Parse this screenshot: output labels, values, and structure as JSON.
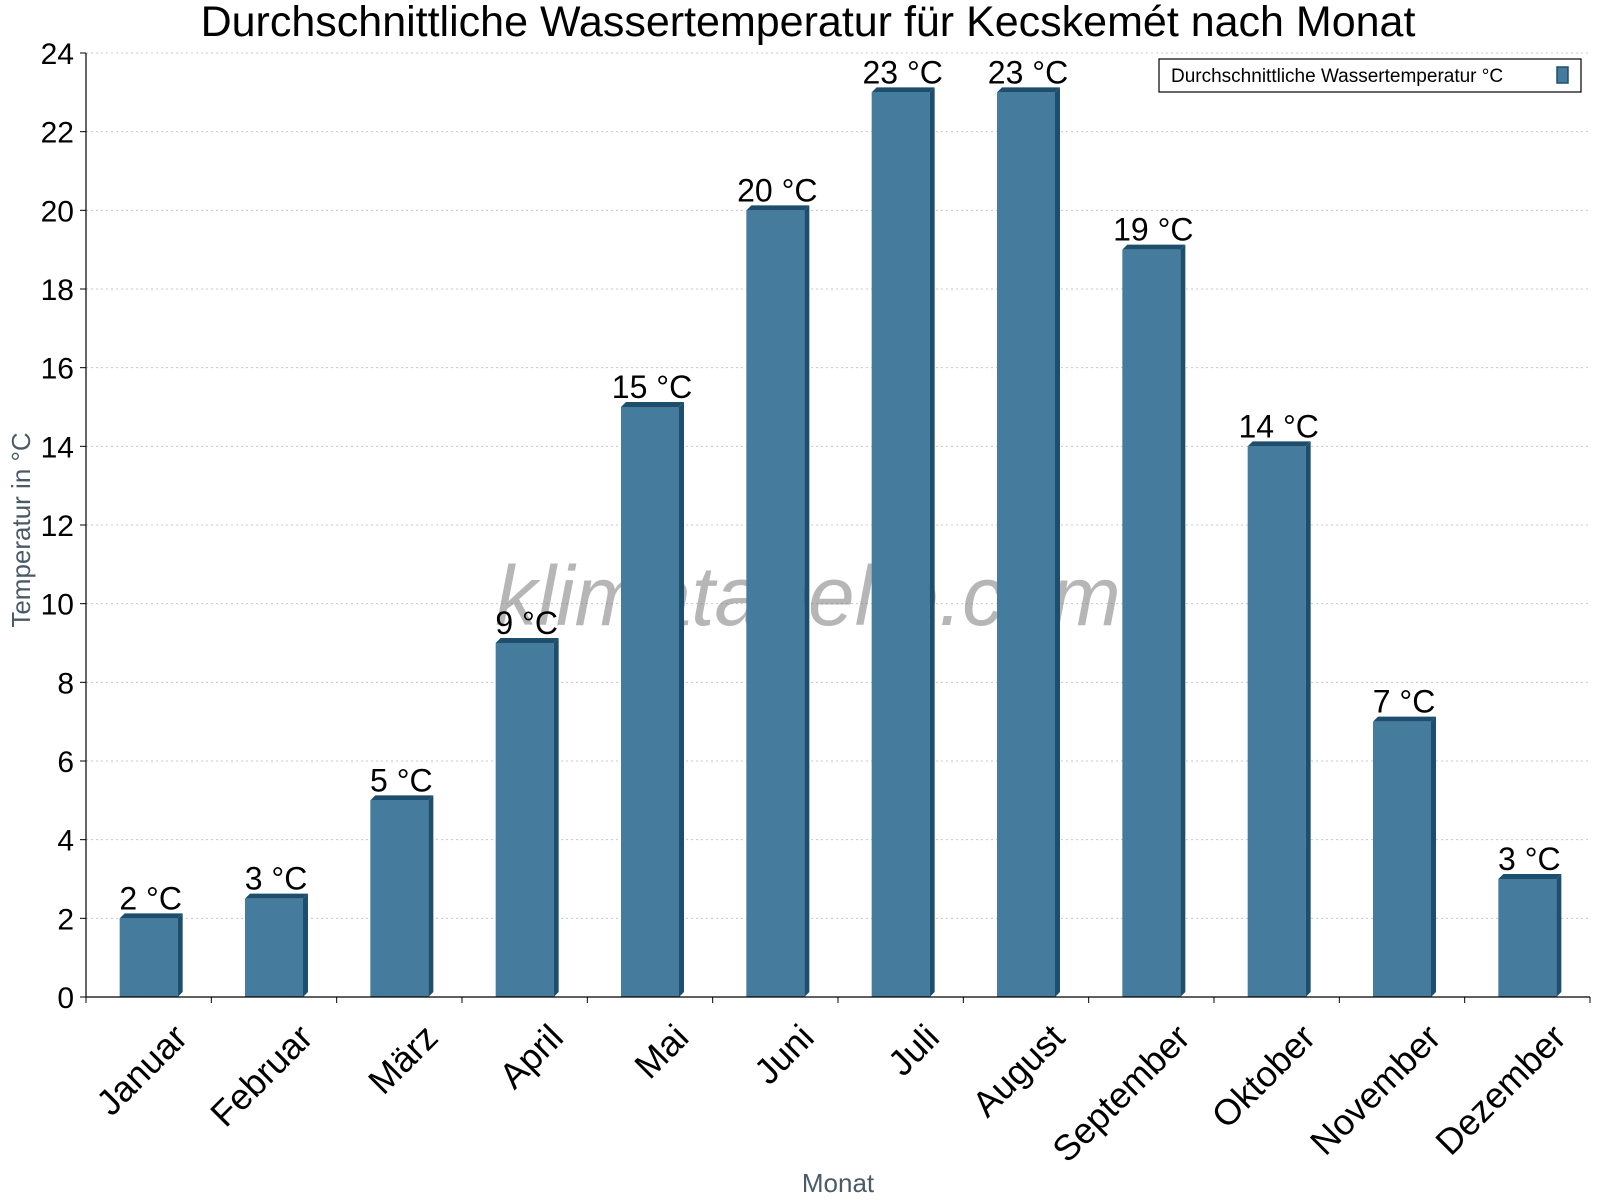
{
  "chart_data": {
    "type": "bar",
    "title": "Durchschnittliche Wassertemperatur für Kecskemét nach Monat",
    "xlabel": "Monat",
    "ylabel": "Temperatur in °C",
    "categories": [
      "Januar",
      "Februar",
      "März",
      "April",
      "Mai",
      "Juni",
      "Juli",
      "August",
      "September",
      "Oktober",
      "November",
      "Dezember"
    ],
    "series": [
      {
        "name": "Durchschnittliche Wassertemperatur °C",
        "values": [
          2,
          2.5,
          5,
          9,
          15,
          20,
          23,
          23,
          19,
          14,
          7,
          3
        ],
        "labels": [
          "2 °C",
          "3 °C",
          "5 °C",
          "9 °C",
          "15 °C",
          "20 °C",
          "23 °C",
          "23 °C",
          "19 °C",
          "14 °C",
          "7 °C",
          "3 °C"
        ]
      }
    ],
    "ylim": [
      0,
      24
    ],
    "yticks": [
      0,
      2,
      4,
      6,
      8,
      10,
      12,
      14,
      16,
      18,
      20,
      22,
      24
    ],
    "grid": true,
    "legend_position": "top-right",
    "colors": {
      "bar": "#457b9d",
      "bar_side": "#1d4e6e",
      "bar_top": "#1d4e6e"
    }
  },
  "watermark": "klimatabelle.com"
}
